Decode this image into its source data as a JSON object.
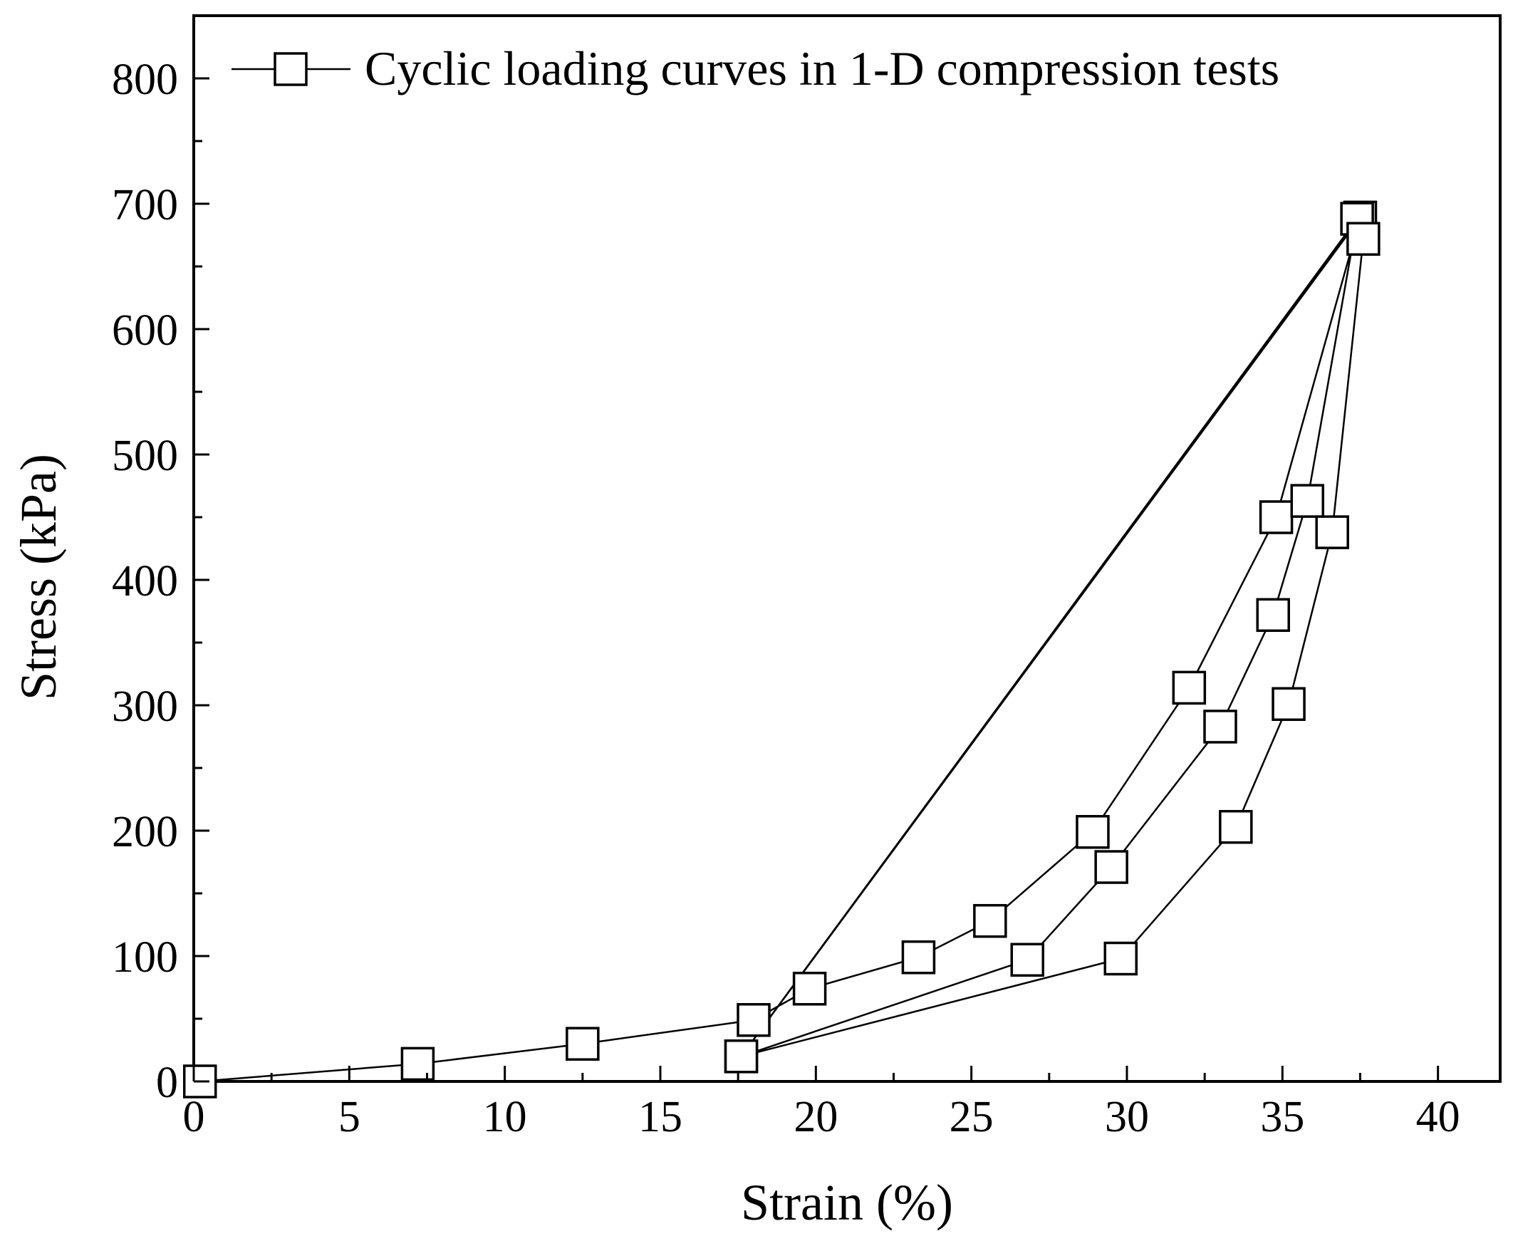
{
  "chart_data": {
    "type": "line",
    "title": "",
    "xlabel": "Strain (%)",
    "ylabel": "Stress (kPa)",
    "xlim": [
      0,
      42
    ],
    "ylim": [
      0,
      850
    ],
    "xticks": [
      0,
      5,
      10,
      15,
      20,
      25,
      30,
      35,
      40
    ],
    "yticks": [
      0,
      100,
      200,
      300,
      400,
      500,
      600,
      700,
      800
    ],
    "xtick_labels": [
      "0",
      "5",
      "10",
      "15",
      "20",
      "25",
      "30",
      "35",
      "40"
    ],
    "ytick_labels": [
      "0",
      "100",
      "200",
      "300",
      "400",
      "500",
      "600",
      "700",
      "800"
    ],
    "grid": false,
    "legend_position": "top-left",
    "series": [
      {
        "name": "Cyclic loading curves in 1-D compression tests",
        "marker": "open-square",
        "x": [
          0.2,
          7.2,
          12.5,
          18.0,
          19.8,
          23.3,
          25.6,
          28.9,
          32.0,
          34.8,
          37.5,
          17.6,
          26.8,
          29.5,
          33.0,
          34.7,
          35.8,
          37.4,
          17.6,
          29.8,
          33.5,
          35.2,
          36.6,
          37.6
        ],
        "y": [
          0,
          14,
          30,
          49,
          74,
          99,
          128,
          199,
          314,
          450,
          689,
          20,
          97,
          171,
          283,
          372,
          463,
          688,
          20,
          98,
          203,
          301,
          438,
          672
        ]
      }
    ]
  }
}
